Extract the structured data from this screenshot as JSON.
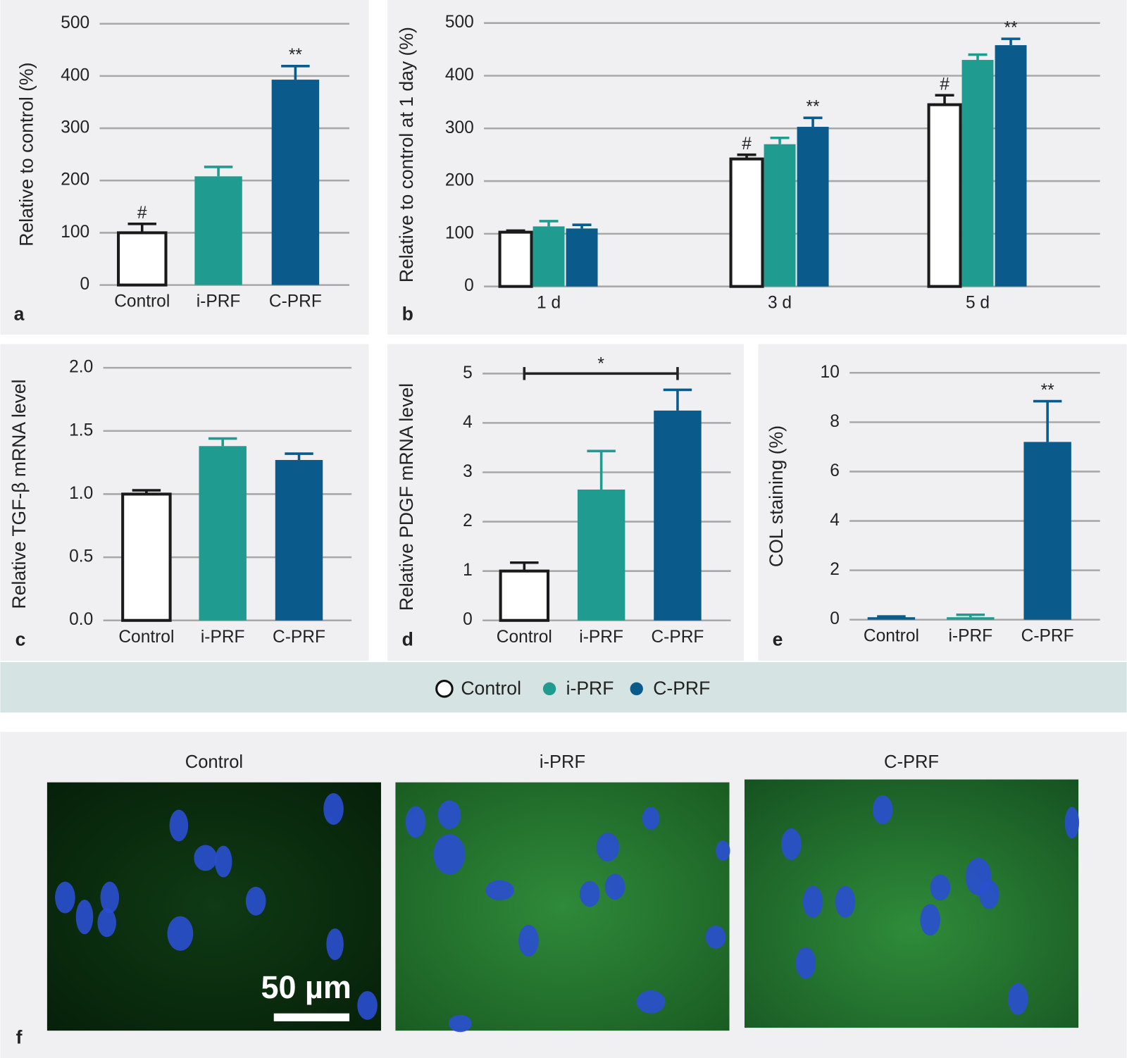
{
  "chart_data": [
    {
      "type": "bar",
      "panel": "a",
      "ylabel": "Relative to control (%)",
      "categories": [
        "Control",
        "i-PRF",
        "C-PRF"
      ],
      "values": [
        100,
        208,
        393
      ],
      "errors": [
        17,
        18,
        26
      ],
      "colors": [
        "#ffffff",
        "#1f9b8f",
        "#0b5a8c"
      ],
      "ylim": [
        0,
        500
      ],
      "yticks": [
        0,
        100,
        200,
        300,
        400,
        500
      ],
      "grid": true,
      "annotations": [
        {
          "text": "#",
          "index": 0
        },
        {
          "text": "**",
          "index": 2
        }
      ]
    },
    {
      "type": "bar",
      "panel": "b",
      "ylabel": "Relative to control at 1 day (%)",
      "categories": [
        "1 d",
        "3 d",
        "5 d"
      ],
      "series": [
        {
          "name": "Control",
          "color": "#ffffff",
          "values": [
            103,
            242,
            345
          ],
          "errors": [
            3,
            8,
            18
          ]
        },
        {
          "name": "i-PRF",
          "color": "#1f9b8f",
          "values": [
            114,
            270,
            430
          ],
          "errors": [
            10,
            12,
            10
          ]
        },
        {
          "name": "C-PRF",
          "color": "#0b5a8c",
          "values": [
            110,
            303,
            458
          ],
          "errors": [
            7,
            17,
            12
          ]
        }
      ],
      "ylim": [
        0,
        500
      ],
      "yticks": [
        0,
        100,
        200,
        300,
        400,
        500
      ],
      "grid": true,
      "annotations": [
        {
          "text": "#",
          "series": 0,
          "index": 1
        },
        {
          "text": "**",
          "series": 2,
          "index": 1
        },
        {
          "text": "#",
          "series": 0,
          "index": 2
        },
        {
          "text": "**",
          "series": 2,
          "index": 2
        }
      ]
    },
    {
      "type": "bar",
      "panel": "c",
      "ylabel": "Relative TGF-β mRNA level",
      "categories": [
        "Control",
        "i-PRF",
        "C-PRF"
      ],
      "values": [
        1.0,
        1.38,
        1.27
      ],
      "errors": [
        0.03,
        0.06,
        0.05
      ],
      "colors": [
        "#ffffff",
        "#1f9b8f",
        "#0b5a8c"
      ],
      "ylim": [
        0,
        2
      ],
      "yticks": [
        {
          "value": 0,
          "label": "0.0"
        },
        {
          "value": 0.5,
          "label": "0.5"
        },
        {
          "value": 1,
          "label": "1.0"
        },
        {
          "value": 1.5,
          "label": "1.5"
        },
        {
          "value": 2,
          "label": "2.0"
        }
      ],
      "grid": true,
      "annotations": []
    },
    {
      "type": "bar",
      "panel": "d",
      "ylabel": "Relative PDGF mRNA level",
      "categories": [
        "Control",
        "i-PRF",
        "C-PRF"
      ],
      "values": [
        1.0,
        2.65,
        4.25
      ],
      "errors": [
        0.17,
        0.78,
        0.42
      ],
      "colors": [
        "#ffffff",
        "#1f9b8f",
        "#0b5a8c"
      ],
      "ylim": [
        0,
        5
      ],
      "yticks": [
        0,
        1,
        2,
        3,
        4,
        5
      ],
      "grid": true,
      "annotations": [],
      "brackets": [
        {
          "text": "*",
          "from": 0,
          "to": 2,
          "y": 5
        }
      ]
    },
    {
      "type": "bar",
      "panel": "e",
      "ylabel": "COL staining (%)",
      "categories": [
        "Control",
        "i-PRF",
        "C-PRF"
      ],
      "values": [
        0.1,
        0.1,
        7.2
      ],
      "errors": [
        0.03,
        0.1,
        1.65
      ],
      "colors": [
        "#0b5a8c",
        "#1f9b8f",
        "#0b5a8c"
      ],
      "ylim": [
        0,
        10
      ],
      "yticks": [
        0,
        2,
        4,
        6,
        8,
        10
      ],
      "grid": true,
      "annotations": [
        {
          "text": "**",
          "index": 2
        }
      ]
    }
  ],
  "legend": {
    "items": [
      {
        "name": "Control",
        "color": "#ffffff"
      },
      {
        "name": "i-PRF",
        "color": "#1f9b8f"
      },
      {
        "name": "C-PRF",
        "color": "#0b5a8c"
      }
    ]
  },
  "micrographs": {
    "panel": "f",
    "titles": [
      "Control",
      "i-PRF",
      "C-PRF"
    ],
    "scale_bar": "50 µm"
  }
}
